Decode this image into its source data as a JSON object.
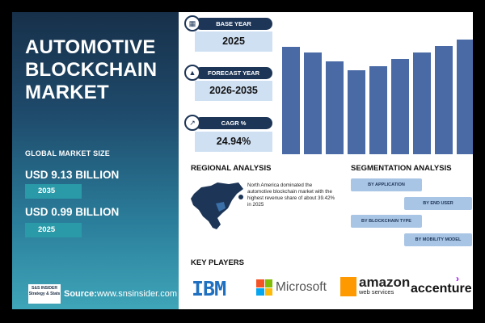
{
  "left_panel": {
    "title": "AUTOMOTIVE BLOCKCHAIN MARKET",
    "global_label": "GLOBAL MARKET SIZE",
    "value_high": "USD 9.13 BILLION",
    "year_high": "2035",
    "value_low": "USD 0.99 BILLION",
    "year_low": "2025",
    "source_prefix": "Source:",
    "source_url": "www.snsinsider.com",
    "logo_text": "S&S INSIDER Strategy & Stats"
  },
  "cards": {
    "base_label": "BASE YEAR",
    "base_value": "2025",
    "forecast_label": "FORECAST YEAR",
    "forecast_value": "2026-2035",
    "cagr_label": "CAGR %",
    "cagr_value": "24.94%"
  },
  "chart_data": {
    "type": "bar",
    "title": "",
    "xlabel": "",
    "ylabel": "",
    "values": [
      0.84,
      0.8,
      0.73,
      0.66,
      0.69,
      0.75,
      0.8,
      0.85,
      0.9
    ],
    "ylim": [
      0,
      1
    ],
    "color": "#4a6aa6"
  },
  "regional": {
    "title": "REGIONAL ANALYSIS",
    "text": "North America dominated the automotive blockchain market with the highest revenue share of about 39.42% in 2025"
  },
  "segmentation": {
    "title": "SEGMENTATION ANALYSIS",
    "items": [
      "BY APPLICATION",
      "BY END USER",
      "BY BLOCKCHAIN TYPE",
      "BY MOBILITY MODEL"
    ]
  },
  "key_players": {
    "title": "KEY PLAYERS",
    "ibm": "IBM",
    "microsoft": "Microsoft",
    "amazon": "amazon",
    "amazon_sub": "web services",
    "accenture": "accenture"
  },
  "colors": {
    "navy": "#1d3557",
    "card_fill": "#cfe0f3",
    "seg_fill": "#a9c5e6",
    "bar": "#4a6aa6"
  }
}
